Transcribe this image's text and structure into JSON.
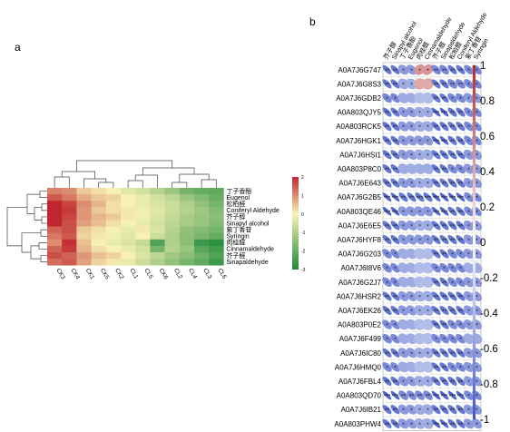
{
  "panels": {
    "a_label": "a",
    "b_label": "b"
  },
  "colors": {
    "heat_high": "#c0262e",
    "heat_mid": "#f7f2b3",
    "heat_low": "#1f8a3a",
    "corr_pos": "#b22a2a",
    "corr_neg": "#3f57c7"
  },
  "chart_data": [
    {
      "panel": "a",
      "type": "heatmap",
      "columns": [
        "CK3",
        "CK4",
        "CK1",
        "CK5",
        "CK2",
        "CL1",
        "CL5",
        "CK6",
        "CL2",
        "CL4",
        "CL3",
        "CL6"
      ],
      "rows": [
        {
          "label": "丁子香酚",
          "values": [
            1.1,
            1.0,
            0.4,
            0.2,
            0.0,
            -0.3,
            -0.5,
            -0.9,
            -1.3,
            -1.8,
            -2.0,
            -2.1
          ]
        },
        {
          "label": "Eugenol",
          "values": [
            1.5,
            1.2,
            0.7,
            0.4,
            0.3,
            0.0,
            -0.2,
            -0.5,
            -0.8,
            -1.3,
            -1.6,
            -2.0
          ]
        },
        {
          "label": "松柏醛",
          "values": [
            2.0,
            1.7,
            1.0,
            0.6,
            0.2,
            0.0,
            -0.2,
            -0.4,
            -0.6,
            -1.0,
            -1.4,
            -1.8
          ]
        },
        {
          "label": "Coniferyl Aldehyde",
          "values": [
            2.1,
            1.8,
            0.9,
            0.4,
            0.2,
            0.1,
            -0.1,
            -0.3,
            -0.6,
            -0.9,
            -1.2,
            -1.6
          ]
        },
        {
          "label": "芥子醇",
          "values": [
            2.1,
            1.7,
            0.9,
            0.6,
            0.4,
            0.1,
            -0.1,
            -0.4,
            -0.7,
            -1.1,
            -1.3,
            -1.5
          ]
        },
        {
          "label": "Sinapyl alcohol",
          "values": [
            2.0,
            1.6,
            0.8,
            0.5,
            0.2,
            0.0,
            -0.2,
            -0.5,
            -0.8,
            -1.1,
            -1.3,
            -1.6
          ]
        },
        {
          "label": "紫丁香苷",
          "values": [
            1.4,
            1.6,
            0.4,
            0.2,
            0.0,
            -0.2,
            0.1,
            -0.4,
            -0.9,
            -1.4,
            -1.6,
            -1.8
          ]
        },
        {
          "label": "Syringin",
          "values": [
            1.2,
            1.5,
            0.3,
            0.1,
            -0.1,
            -0.3,
            0.0,
            -0.6,
            -1.0,
            -1.5,
            -1.7,
            -2.0
          ]
        },
        {
          "label": "肉桂醛",
          "values": [
            1.0,
            1.9,
            0.5,
            0.0,
            -0.2,
            -0.4,
            -0.7,
            -2.3,
            -1.0,
            -1.5,
            -2.6,
            -2.8
          ]
        },
        {
          "label": "Cinnamaldehyde",
          "values": [
            1.4,
            1.8,
            0.6,
            0.2,
            0.0,
            -0.2,
            -0.5,
            -1.8,
            -0.9,
            -1.3,
            -2.2,
            -2.5
          ]
        },
        {
          "label": "芥子醛",
          "values": [
            1.6,
            1.4,
            0.9,
            0.5,
            0.3,
            0.0,
            -0.4,
            -0.8,
            -1.2,
            -1.5,
            -1.9,
            -2.3
          ]
        },
        {
          "label": "Sinapaldehyde",
          "values": [
            1.3,
            1.5,
            0.8,
            0.3,
            0.1,
            -0.2,
            -0.6,
            -1.0,
            -1.4,
            -1.8,
            -2.1,
            -2.6
          ]
        }
      ],
      "colorbar": {
        "ticks": [
          "2",
          "1",
          "0",
          "-1",
          "-2",
          "-3"
        ],
        "range": [
          -3,
          2
        ]
      }
    },
    {
      "panel": "b",
      "type": "heatmap",
      "columns": [
        "芥子醇",
        "Sinapyl alcohol",
        "丁子香酚",
        "Eugenol",
        "肉桂醛",
        "Cinnamaldehyde",
        "芥子醛",
        "Sinapaldehyde",
        "松柏醛",
        "Coniferyl Aldehyde",
        "紫丁香苷",
        "Syringin"
      ],
      "rows": [
        {
          "label": "A0A7J6G747",
          "values": [
            -0.8,
            -0.8,
            -0.6,
            -0.6,
            0.5,
            0.5,
            -0.7,
            -0.7,
            -0.8,
            -0.8,
            -0.7,
            -0.7
          ],
          "stars": [
            "**",
            "**",
            "*",
            "*",
            "*",
            "*",
            "**",
            "**",
            "**",
            "**",
            "*",
            "*"
          ]
        },
        {
          "label": "A0A7J6G8S3",
          "values": [
            -0.8,
            -0.8,
            -0.5,
            -0.5,
            0.4,
            0.4,
            -0.8,
            -0.8,
            -0.7,
            -0.7,
            -0.7,
            -0.7
          ],
          "stars": [
            "**",
            "**",
            "*",
            "*",
            "",
            "",
            "**",
            "**",
            "**",
            "**",
            "*",
            "*"
          ]
        },
        {
          "label": "A0A7J6GDB2",
          "values": [
            -0.7,
            -0.7,
            -0.5,
            -0.5,
            -0.4,
            -0.4,
            -0.8,
            -0.8,
            -0.7,
            -0.7,
            -0.6,
            -0.6
          ],
          "stars": [
            "*",
            "*",
            "",
            "",
            "",
            "",
            "**",
            "**",
            "*",
            "*",
            "*",
            "*"
          ]
        },
        {
          "label": "A0A803QJY5",
          "values": [
            -0.8,
            -0.8,
            -0.6,
            -0.6,
            -0.5,
            -0.5,
            -0.9,
            -0.9,
            -0.8,
            -0.8,
            -0.7,
            -0.7
          ],
          "stars": [
            "**",
            "**",
            "*",
            "*",
            "*",
            "*",
            "***",
            "***",
            "**",
            "**",
            "*",
            "*"
          ]
        },
        {
          "label": "A0A803RCK5",
          "values": [
            -0.8,
            -0.8,
            -0.6,
            -0.6,
            -0.5,
            -0.5,
            -0.8,
            -0.8,
            -0.8,
            -0.8,
            -0.7,
            -0.7
          ],
          "stars": [
            "**",
            "**",
            "*",
            "*",
            "*",
            "*",
            "**",
            "**",
            "**",
            "**",
            "*",
            "*"
          ]
        },
        {
          "label": "A0A7J6HGK1",
          "values": [
            -0.8,
            -0.8,
            -0.6,
            -0.6,
            -0.6,
            -0.6,
            -0.9,
            -0.9,
            -0.8,
            -0.8,
            -0.7,
            -0.7
          ],
          "stars": [
            "**",
            "**",
            "*",
            "*",
            "*",
            "*",
            "***",
            "***",
            "**",
            "**",
            "*",
            "*"
          ]
        },
        {
          "label": "A0A7J6HSI1",
          "values": [
            -0.8,
            -0.8,
            -0.6,
            -0.6,
            -0.5,
            -0.5,
            -0.8,
            -0.8,
            -0.8,
            -0.8,
            -0.6,
            -0.6
          ],
          "stars": [
            "**",
            "**",
            "*",
            "*",
            "*",
            "*",
            "**",
            "**",
            "**",
            "**",
            "*",
            "*"
          ]
        },
        {
          "label": "A0A803P8C0",
          "values": [
            -0.8,
            -0.8,
            -0.5,
            -0.5,
            -0.5,
            -0.5,
            -0.8,
            -0.8,
            -0.7,
            -0.7,
            -0.6,
            -0.6
          ],
          "stars": [
            "**",
            "**",
            "",
            "",
            "",
            "",
            "**",
            "**",
            "*",
            "*",
            "*",
            "*"
          ]
        },
        {
          "label": "A0A7J6E643",
          "values": [
            -0.8,
            -0.8,
            -0.6,
            -0.6,
            -0.5,
            -0.5,
            -0.8,
            -0.8,
            -0.8,
            -0.8,
            -0.6,
            -0.6
          ],
          "stars": [
            "**",
            "**",
            "*",
            "*",
            "*",
            "*",
            "**",
            "**",
            "**",
            "**",
            "*",
            "*"
          ]
        },
        {
          "label": "A0A7J6G2B5",
          "values": [
            -0.9,
            -0.9,
            -0.8,
            -0.8,
            -0.8,
            -0.8,
            -0.9,
            -0.9,
            -0.9,
            -0.9,
            -0.7,
            -0.7
          ],
          "stars": [
            "***",
            "***",
            "**",
            "**",
            "***",
            "***",
            "***",
            "***",
            "***",
            "***",
            "*",
            "*"
          ]
        },
        {
          "label": "A0A803QE46",
          "values": [
            -0.9,
            -0.9,
            -0.6,
            -0.6,
            -0.6,
            -0.6,
            -0.9,
            -0.9,
            -0.8,
            -0.8,
            -0.7,
            -0.7
          ],
          "stars": [
            "***",
            "***",
            "*",
            "*",
            "*",
            "*",
            "***",
            "***",
            "**",
            "**",
            "*",
            "*"
          ]
        },
        {
          "label": "A0A7J6E6E5",
          "values": [
            -0.8,
            -0.8,
            -0.6,
            -0.6,
            -0.5,
            -0.5,
            -0.8,
            -0.8,
            -0.8,
            -0.8,
            -0.6,
            -0.6
          ],
          "stars": [
            "**",
            "**",
            "*",
            "*",
            "*",
            "*",
            "**",
            "**",
            "**",
            "**",
            "*",
            "*"
          ]
        },
        {
          "label": "A0A7J6HYF8",
          "values": [
            -0.8,
            -0.8,
            -0.6,
            -0.6,
            -0.6,
            -0.6,
            -0.8,
            -0.8,
            -0.8,
            -0.8,
            -0.6,
            -0.6
          ],
          "stars": [
            "**",
            "**",
            "*",
            "*",
            "*",
            "*",
            "**",
            "**",
            "**",
            "**",
            "*",
            "*"
          ]
        },
        {
          "label": "A0A7J6G203",
          "values": [
            -0.7,
            -0.7,
            -0.5,
            -0.5,
            -0.4,
            -0.4,
            -0.8,
            -0.8,
            -0.7,
            -0.7,
            -0.6,
            -0.6
          ],
          "stars": [
            "*",
            "*",
            "",
            "",
            "",
            "",
            "**",
            "**",
            "*",
            "*",
            "*",
            "*"
          ]
        },
        {
          "label": "A0A7J6I8V6",
          "values": [
            -0.7,
            -0.7,
            -0.5,
            -0.5,
            -0.4,
            -0.4,
            -0.7,
            -0.7,
            -0.7,
            -0.7,
            -0.5,
            -0.5
          ],
          "stars": [
            "*",
            "*",
            "",
            "",
            "",
            "",
            "*",
            "*",
            "*",
            "*",
            "",
            ""
          ]
        },
        {
          "label": "A0A7J6G2J7",
          "values": [
            -0.7,
            -0.7,
            -0.5,
            -0.5,
            -0.4,
            -0.4,
            -0.8,
            -0.8,
            -0.7,
            -0.7,
            -0.6,
            -0.6
          ],
          "stars": [
            "*",
            "*",
            "",
            "",
            "",
            "",
            "**",
            "**",
            "*",
            "*",
            "*",
            "*"
          ]
        },
        {
          "label": "A0A7J6HSR2",
          "values": [
            -0.8,
            -0.8,
            -0.6,
            -0.6,
            -0.5,
            -0.5,
            -0.8,
            -0.8,
            -0.8,
            -0.8,
            -0.6,
            -0.6
          ],
          "stars": [
            "**",
            "**",
            "*",
            "*",
            "*",
            "*",
            "**",
            "**",
            "**",
            "**",
            "*",
            "*"
          ]
        },
        {
          "label": "A0A7J6EK26",
          "values": [
            -0.8,
            -0.8,
            -0.6,
            -0.6,
            -0.5,
            -0.5,
            -0.8,
            -0.8,
            -0.8,
            -0.8,
            -0.6,
            -0.6
          ],
          "stars": [
            "**",
            "**",
            "*",
            "*",
            "*",
            "*",
            "**",
            "**",
            "**",
            "**",
            "*",
            "*"
          ]
        },
        {
          "label": "A0A803P0E2",
          "values": [
            -0.7,
            -0.7,
            -0.5,
            -0.5,
            -0.4,
            -0.4,
            -0.8,
            -0.8,
            -0.7,
            -0.7,
            -0.6,
            -0.6
          ],
          "stars": [
            "*",
            "*",
            "",
            "",
            "",
            "",
            "**",
            "**",
            "*",
            "*",
            "*",
            "*"
          ]
        },
        {
          "label": "A0A7J6F499",
          "values": [
            -0.7,
            -0.7,
            -0.5,
            -0.5,
            -0.4,
            -0.4,
            -0.7,
            -0.7,
            -0.7,
            -0.7,
            -0.5,
            -0.5
          ],
          "stars": [
            "*",
            "*",
            "",
            "",
            "",
            "",
            "*",
            "*",
            "*",
            "*",
            "",
            ""
          ]
        },
        {
          "label": "A0A7J6IC80",
          "values": [
            -0.8,
            -0.8,
            -0.6,
            -0.6,
            -0.5,
            -0.5,
            -0.8,
            -0.8,
            -0.8,
            -0.8,
            -0.6,
            -0.6
          ],
          "stars": [
            "**",
            "**",
            "*",
            "*",
            "*",
            "*",
            "**",
            "**",
            "**",
            "**",
            "*",
            "*"
          ]
        },
        {
          "label": "A0A7J6HMQ0",
          "values": [
            -0.7,
            -0.7,
            -0.5,
            -0.5,
            -0.4,
            -0.4,
            -0.8,
            -0.8,
            -0.7,
            -0.7,
            -0.6,
            -0.6
          ],
          "stars": [
            "*",
            "*",
            "",
            "",
            "",
            "",
            "**",
            "**",
            "*",
            "*",
            "*",
            "*"
          ]
        },
        {
          "label": "A0A7J6FBL4",
          "values": [
            -0.8,
            -0.8,
            -0.6,
            -0.6,
            -0.5,
            -0.5,
            -0.8,
            -0.8,
            -0.8,
            -0.8,
            -0.6,
            -0.6
          ],
          "stars": [
            "**",
            "**",
            "*",
            "*",
            "*",
            "*",
            "**",
            "**",
            "**",
            "**",
            "*",
            "*"
          ]
        },
        {
          "label": "A0A803QD70",
          "values": [
            -0.9,
            -0.9,
            -0.7,
            -0.7,
            -0.7,
            -0.7,
            -0.9,
            -0.9,
            -0.9,
            -0.9,
            -0.7,
            -0.7
          ],
          "stars": [
            "***",
            "***",
            "**",
            "**",
            "**",
            "**",
            "***",
            "***",
            "***",
            "***",
            "*",
            "*"
          ]
        },
        {
          "label": "A0A7J6IB21",
          "values": [
            -0.8,
            -0.8,
            -0.6,
            -0.6,
            -0.5,
            -0.5,
            -0.8,
            -0.8,
            -0.8,
            -0.8,
            -0.6,
            -0.6
          ],
          "stars": [
            "**",
            "**",
            "*",
            "*",
            "*",
            "*",
            "**",
            "**",
            "**",
            "**",
            "*",
            "*"
          ]
        },
        {
          "label": "A0A803PHW4",
          "values": [
            -0.8,
            -0.8,
            -0.6,
            -0.6,
            -0.5,
            -0.5,
            -0.9,
            -0.9,
            -0.8,
            -0.8,
            -0.6,
            -0.6
          ],
          "stars": [
            "**",
            "**",
            "*",
            "*",
            "*",
            "*",
            "***",
            "***",
            "**",
            "**",
            "*",
            "*"
          ]
        }
      ],
      "colorbar": {
        "ticks": [
          "1",
          "0.8",
          "0.6",
          "0.4",
          "0.2",
          "0",
          "-0.2",
          "-0.4",
          "-0.6",
          "-0.8",
          "-1"
        ],
        "range": [
          -1,
          1
        ]
      }
    }
  ]
}
